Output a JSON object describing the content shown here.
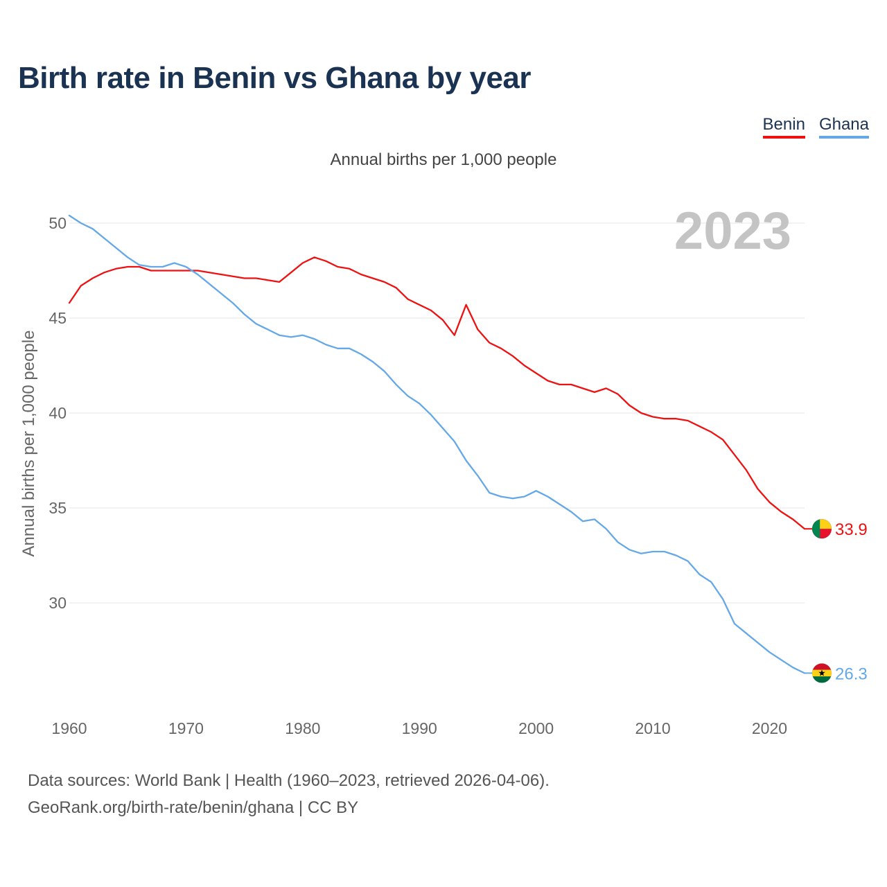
{
  "title": "Birth rate in Benin vs Ghana by year",
  "subtitle": "Annual births per 1,000 people",
  "current_year": "2023",
  "legend": [
    {
      "label": "Benin",
      "color": "#ee1111"
    },
    {
      "label": "Ghana",
      "color": "#64a8e8"
    }
  ],
  "source_line1": "Data sources: World Bank | Health (1960–2023, retrieved 2026-04-06).",
  "source_line2": "GeoRank.org/birth-rate/benin/ghana | CC BY",
  "chart_data": {
    "type": "line",
    "title": "Birth rate in Benin vs Ghana by year",
    "ylabel": "Annual births per 1,000 people",
    "xlabel": "",
    "xlim": [
      1960,
      2023
    ],
    "ylim": [
      25,
      51
    ],
    "x_ticks": [
      1960,
      1970,
      1980,
      1990,
      2000,
      2010,
      2020
    ],
    "y_ticks": [
      30,
      35,
      40,
      45,
      50
    ],
    "grid": true,
    "x": [
      1960,
      1961,
      1962,
      1963,
      1964,
      1965,
      1966,
      1967,
      1968,
      1969,
      1970,
      1971,
      1972,
      1973,
      1974,
      1975,
      1976,
      1977,
      1978,
      1979,
      1980,
      1981,
      1982,
      1983,
      1984,
      1985,
      1986,
      1987,
      1988,
      1989,
      1990,
      1991,
      1992,
      1993,
      1994,
      1995,
      1996,
      1997,
      1998,
      1999,
      2000,
      2001,
      2002,
      2003,
      2004,
      2005,
      2006,
      2007,
      2008,
      2009,
      2010,
      2011,
      2012,
      2013,
      2014,
      2015,
      2016,
      2017,
      2018,
      2019,
      2020,
      2021,
      2022,
      2023
    ],
    "series": [
      {
        "name": "Benin",
        "color": "#ee1111",
        "end_label": "33.9",
        "values": [
          45.8,
          46.7,
          47.1,
          47.4,
          47.6,
          47.7,
          47.7,
          47.5,
          47.5,
          47.5,
          47.5,
          47.5,
          47.4,
          47.3,
          47.2,
          47.1,
          47.1,
          47.0,
          46.9,
          47.4,
          47.9,
          48.2,
          48.0,
          47.7,
          47.6,
          47.3,
          47.1,
          46.9,
          46.6,
          46.0,
          45.7,
          45.4,
          44.9,
          44.1,
          45.7,
          44.4,
          43.7,
          43.4,
          43.0,
          42.5,
          42.1,
          41.7,
          41.5,
          41.5,
          41.3,
          41.1,
          41.3,
          41.0,
          40.4,
          40.0,
          39.8,
          39.7,
          39.7,
          39.6,
          39.3,
          39.0,
          38.6,
          37.8,
          37.0,
          36.0,
          35.3,
          34.8,
          34.4,
          33.9
        ]
      },
      {
        "name": "Ghana",
        "color": "#64a8e8",
        "end_label": "26.3",
        "values": [
          50.4,
          50.0,
          49.7,
          49.2,
          48.7,
          48.2,
          47.8,
          47.7,
          47.7,
          47.9,
          47.7,
          47.3,
          46.8,
          46.3,
          45.8,
          45.2,
          44.7,
          44.4,
          44.1,
          44.0,
          44.1,
          43.9,
          43.6,
          43.4,
          43.4,
          43.1,
          42.7,
          42.2,
          41.5,
          40.9,
          40.5,
          39.9,
          39.2,
          38.5,
          37.5,
          36.7,
          35.8,
          35.6,
          35.5,
          35.6,
          35.9,
          35.6,
          35.2,
          34.8,
          34.3,
          34.4,
          33.9,
          33.2,
          32.8,
          32.6,
          32.7,
          32.7,
          32.5,
          32.2,
          31.5,
          31.1,
          30.2,
          28.9,
          28.4,
          27.9,
          27.4,
          27.0,
          26.6,
          26.3
        ]
      }
    ]
  }
}
